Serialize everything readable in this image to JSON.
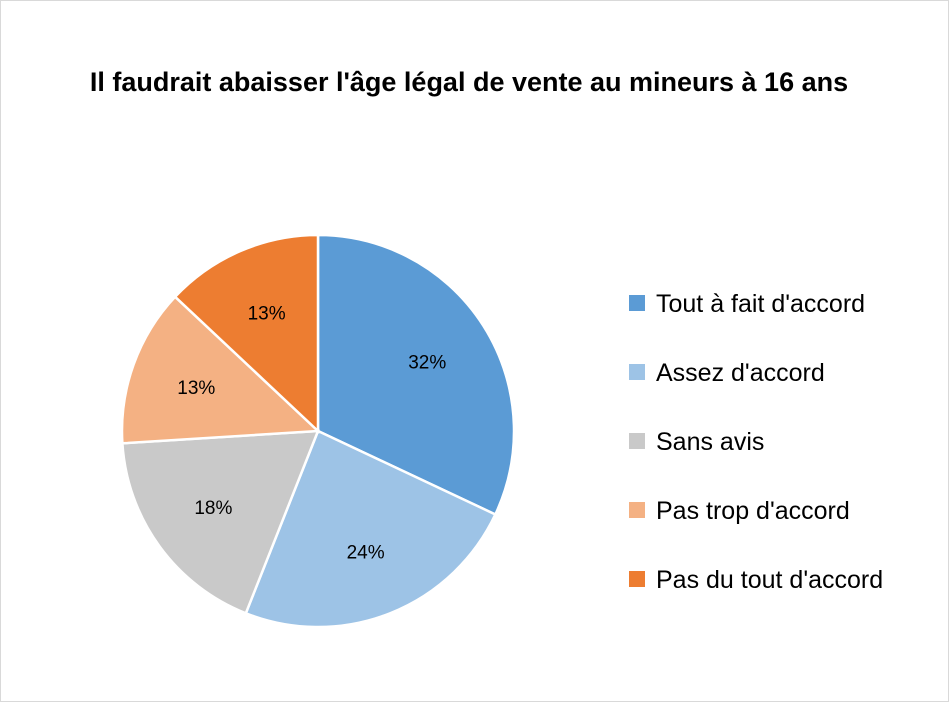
{
  "chart_data": {
    "type": "pie",
    "title": "Il faudrait abaisser l'âge légal de vente au mineurs à 16 ans",
    "categories": [
      "Tout à fait d'accord",
      "Assez d'accord",
      "Sans avis",
      "Pas trop d'accord",
      "Pas du tout d'accord"
    ],
    "values": [
      32,
      24,
      18,
      13,
      13
    ],
    "data_labels": [
      "32%",
      "24%",
      "18%",
      "13%",
      "13%"
    ],
    "colors": [
      "#5B9BD5",
      "#9DC3E6",
      "#C9C9C9",
      "#F4B183",
      "#ED7D31"
    ],
    "legend_position": "right"
  }
}
